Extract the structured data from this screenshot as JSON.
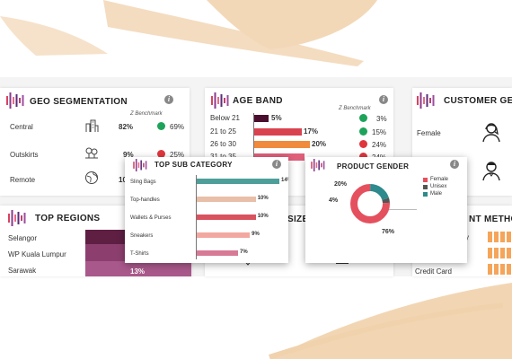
{
  "geo": {
    "title": "GEO SEGMENTATION",
    "benchmark_label": "Z Benchmark",
    "rows": [
      {
        "label": "Central",
        "value": "82%",
        "status": "green",
        "bench": "69%"
      },
      {
        "label": "Outskirts",
        "value": "9%",
        "status": "red",
        "bench": "25%"
      },
      {
        "label": "Remote",
        "value": "10",
        "status": "",
        "bench": ""
      }
    ]
  },
  "age": {
    "title": "AGE BAND",
    "benchmark_label": "Z Benchmark",
    "rows": [
      {
        "label": "Below 21",
        "value": "5%",
        "pct": 5,
        "color": "#4a0f2e",
        "status": "green",
        "bench": "3%"
      },
      {
        "label": "21 to 25",
        "value": "17%",
        "pct": 17,
        "color": "#d9434f",
        "status": "green",
        "bench": "15%"
      },
      {
        "label": "26 to 30",
        "value": "20%",
        "pct": 20,
        "color": "#f08a3c",
        "status": "red",
        "bench": "24%"
      },
      {
        "label": "31 to 35",
        "value": "",
        "pct": 18,
        "color": "#e0607a",
        "status": "red",
        "bench": "24%"
      }
    ]
  },
  "customer": {
    "title": "CUSTOMER GE",
    "rows": [
      {
        "label": "Female"
      },
      {
        "label": ""
      }
    ]
  },
  "regions": {
    "title": "TOP REGIONS",
    "rows": [
      {
        "label": "Selangor",
        "value": "",
        "color": "#5e1f43"
      },
      {
        "label": "WP Kuala Lumpur",
        "value": "",
        "color": "#8c3f6e"
      },
      {
        "label": "Sarawak",
        "value": "13%",
        "color": "#a9588b"
      }
    ]
  },
  "size_card": {
    "title": "SIZE"
  },
  "payment": {
    "title": "NT METHO",
    "rows": [
      {
        "label": "y"
      },
      {
        "label": ""
      },
      {
        "label": "Credit Card"
      }
    ]
  },
  "subcat": {
    "title": "TOP SUB CATEGORY",
    "chart_data": {
      "type": "bar",
      "categories": [
        "Sling Bags",
        "Top-handles",
        "Wallets & Purses",
        "Sneakers",
        "T-Shirts"
      ],
      "values": [
        14,
        10,
        10,
        9,
        7
      ],
      "labels": [
        "14%",
        "10%",
        "10%",
        "9%",
        "7%"
      ],
      "colors": [
        "#4e9e9a",
        "#e8bfa8",
        "#d9535f",
        "#f2a8a0",
        "#d77a96"
      ],
      "xlim": [
        0,
        14
      ]
    }
  },
  "gender": {
    "title": "PRODUCT GENDER",
    "chart_data": {
      "type": "pie",
      "categories": [
        "Female",
        "Unisex",
        "Male"
      ],
      "values": [
        76,
        4,
        20
      ],
      "labels": [
        "76%",
        "4%",
        "20%"
      ],
      "colors": [
        "#e5505e",
        "#555555",
        "#2e8a8c"
      ]
    }
  }
}
